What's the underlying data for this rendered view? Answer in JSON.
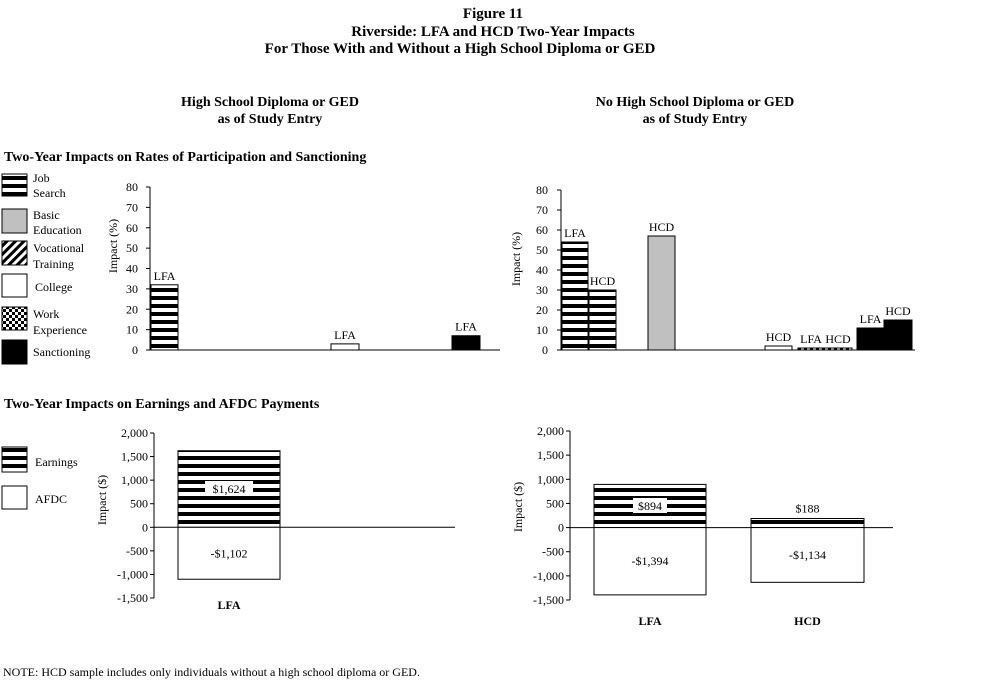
{
  "figure": {
    "number": "Figure 11",
    "title_line1": "Riverside: LFA and HCD Two-Year Impacts",
    "title_line2": "For Those With and Without a High School Diploma or GED"
  },
  "panels": {
    "left_line1": "High School Diploma or GED",
    "left_line2": "as of Study Entry",
    "right_line1": "No High School Diploma or GED",
    "right_line2": "as of Study Entry"
  },
  "sections": {
    "participation": "Two-Year Impacts on Rates of Participation and Sanctioning",
    "earnings": "Two-Year Impacts on Earnings and AFDC Payments"
  },
  "legend_top": [
    {
      "line1": "Job",
      "line2": "Search",
      "pattern": "stripes"
    },
    {
      "line1": "Basic",
      "line2": "Education",
      "pattern": "gray"
    },
    {
      "line1": "Vocational",
      "line2": "Training",
      "pattern": "diagonal"
    },
    {
      "line1": "College",
      "line2": "",
      "pattern": "white"
    },
    {
      "line1": "Work",
      "line2": "Experience",
      "pattern": "checker"
    },
    {
      "line1": "Sanctioning",
      "line2": "",
      "pattern": "black"
    }
  ],
  "legend_bottom": [
    {
      "label": "Earnings",
      "pattern": "stripes"
    },
    {
      "label": "AFDC",
      "pattern": "white"
    }
  ],
  "note": "NOTE: HCD sample includes only individuals without a high school diploma or GED.",
  "colors": {
    "gray": "#c0c0c0",
    "black": "#000000",
    "white": "#ffffff"
  },
  "chart_data": [
    {
      "id": "top_left",
      "type": "bar",
      "ylabel": "Impact (%)",
      "ylim": [
        0,
        80
      ],
      "yticks": [
        "0",
        "10",
        "20",
        "30",
        "40",
        "50",
        "60",
        "70",
        "80"
      ],
      "bars": [
        {
          "program": "LFA",
          "category": "Job Search",
          "pattern": "stripes",
          "value": 32
        },
        {
          "program": "LFA",
          "category": "College",
          "pattern": "white",
          "value": 3
        },
        {
          "program": "LFA",
          "category": "Sanctioning",
          "pattern": "black",
          "value": 7
        }
      ]
    },
    {
      "id": "top_right",
      "type": "bar",
      "ylabel": "Impact (%)",
      "ylim": [
        0,
        80
      ],
      "yticks": [
        "0",
        "10",
        "20",
        "30",
        "40",
        "50",
        "60",
        "70",
        "80"
      ],
      "bars": [
        {
          "program": "LFA",
          "category": "Job Search",
          "pattern": "stripes",
          "value": 54
        },
        {
          "program": "HCD",
          "category": "Job Search",
          "pattern": "stripes",
          "value": 30
        },
        {
          "program": "HCD",
          "category": "Basic Education",
          "pattern": "gray",
          "value": 57
        },
        {
          "program": "HCD",
          "category": "College",
          "pattern": "white",
          "value": 2
        },
        {
          "program": "LFA",
          "category": "Work Experience",
          "pattern": "checker",
          "value": 1
        },
        {
          "program": "HCD",
          "category": "Work Experience",
          "pattern": "checker",
          "value": 1
        },
        {
          "program": "LFA",
          "category": "Sanctioning",
          "pattern": "black",
          "value": 11
        },
        {
          "program": "HCD",
          "category": "Sanctioning",
          "pattern": "black",
          "value": 15
        }
      ]
    },
    {
      "id": "bottom_left",
      "type": "bar",
      "ylabel": "Impact ($)",
      "ylim": [
        -1500,
        2000
      ],
      "yticks": [
        "-1,500",
        "-1,000",
        "-500",
        "0",
        "500",
        "1,000",
        "1,500",
        "2,000"
      ],
      "categories": [
        "LFA"
      ],
      "series": [
        {
          "name": "Earnings",
          "pattern": "stripes",
          "values": [
            1624
          ],
          "labels": [
            "$1,624"
          ]
        },
        {
          "name": "AFDC",
          "pattern": "white",
          "values": [
            -1102
          ],
          "labels": [
            "-$1,102"
          ]
        }
      ]
    },
    {
      "id": "bottom_right",
      "type": "bar",
      "ylabel": "Impact ($)",
      "ylim": [
        -1500,
        2000
      ],
      "yticks": [
        "-1,500",
        "-1,000",
        "-500",
        "0",
        "500",
        "1,000",
        "1,500",
        "2,000"
      ],
      "categories": [
        "LFA",
        "HCD"
      ],
      "series": [
        {
          "name": "Earnings",
          "pattern": "stripes",
          "values": [
            894,
            188
          ],
          "labels": [
            "$894",
            "$188"
          ]
        },
        {
          "name": "AFDC",
          "pattern": "white",
          "values": [
            -1394,
            -1134
          ],
          "labels": [
            "-$1,394",
            "-$1,134"
          ]
        }
      ]
    }
  ]
}
